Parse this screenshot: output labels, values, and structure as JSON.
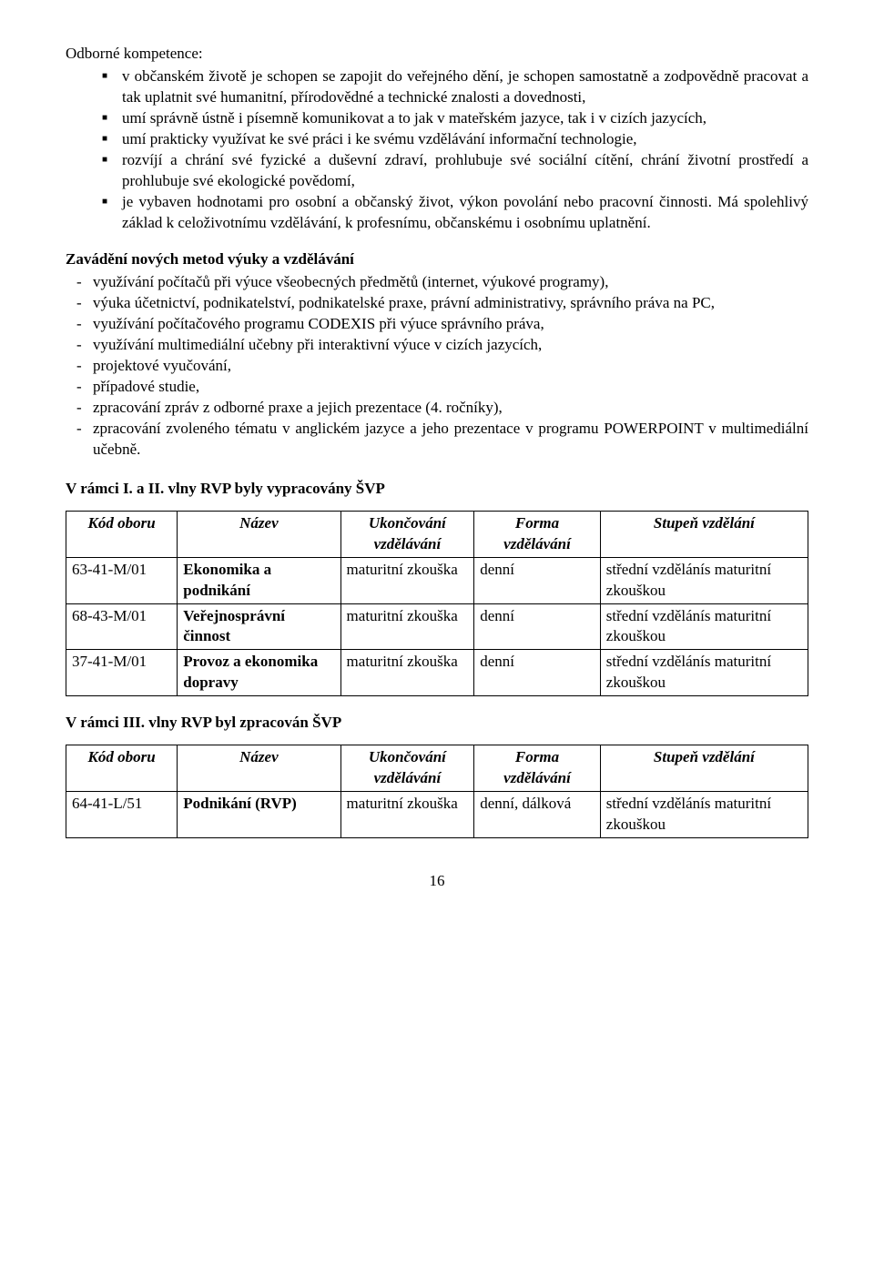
{
  "section1_title": "Odborné kompetence:",
  "bullets": [
    "v občanském životě je schopen se zapojit do veřejného dění, je schopen samostatně a zodpovědně pracovat a tak uplatnit své humanitní, přírodovědné a technické znalosti a dovednosti,",
    "umí správně ústně i písemně komunikovat a to jak v mateřském jazyce, tak i v cizích jazycích,",
    "umí prakticky využívat ke své práci i ke svému vzdělávání informační technologie,",
    "rozvíjí a chrání své fyzické a duševní zdraví, prohlubuje své sociální cítění, chrání životní prostředí a prohlubuje své ekologické povědomí,",
    "je vybaven hodnotami pro osobní a občanský život, výkon povolání nebo pracovní činnosti. Má spolehlivý základ k celoživotnímu vzdělávání, k profesnímu, občanskému i osobnímu uplatnění."
  ],
  "section2_title": "Zavádění nových metod výuky a vzdělávání",
  "dashes": [
    "využívání počítačů při výuce všeobecných předmětů (internet, výukové programy),",
    "výuka účetnictví, podnikatelství, podnikatelské praxe, právní administrativy, správního práva na PC,",
    "využívání počítačového programu CODEXIS při výuce správního práva,",
    "využívání multimediální učebny při interaktivní výuce v cizích jazycích,",
    "projektové vyučování,",
    "případové studie,",
    "zpracování zpráv z odborné praxe a jejich prezentace (4. ročníky),",
    "zpracování zvoleného tématu v anglickém jazyce a jeho prezentace v programu POWERPOINT v multimediální učebně."
  ],
  "table1_heading": "V rámci I. a II. vlny RVP byly vypracovány ŠVP",
  "table_headers": {
    "kod": "Kód oboru",
    "nazev": "Název",
    "ukon": "Ukončování vzdělávání",
    "forma": "Forma vzdělávání",
    "stupen": "Stupeň vzdělání"
  },
  "table1_rows": [
    {
      "kod": "63-41-M/01",
      "nazev": "Ekonomika a podnikání",
      "ukon": "maturitní zkouška",
      "forma": "denní",
      "stup1": "střední vzdělání",
      "stup2": "s maturitní zkouškou"
    },
    {
      "kod": "68-43-M/01",
      "nazev": "Veřejnosprávní činnost",
      "ukon": "maturitní zkouška",
      "forma": "denní",
      "stup1": "střední vzdělání",
      "stup2": "s maturitní zkouškou"
    },
    {
      "kod": "37-41-M/01",
      "nazev": "Provoz a ekonomika dopravy",
      "ukon": "maturitní zkouška",
      "forma": "denní",
      "stup1": "střední vzdělání",
      "stup2": "s maturitní zkouškou"
    }
  ],
  "table2_heading": "V rámci III. vlny RVP byl zpracován ŠVP",
  "table2_rows": [
    {
      "kod": "64-41-L/51",
      "nazev": "Podnikání (RVP)",
      "ukon": "maturitní zkouška",
      "forma": "denní, dálková",
      "stup1": "střední vzdělání",
      "stup2": "s maturitní zkouškou"
    }
  ],
  "page_number": "16"
}
